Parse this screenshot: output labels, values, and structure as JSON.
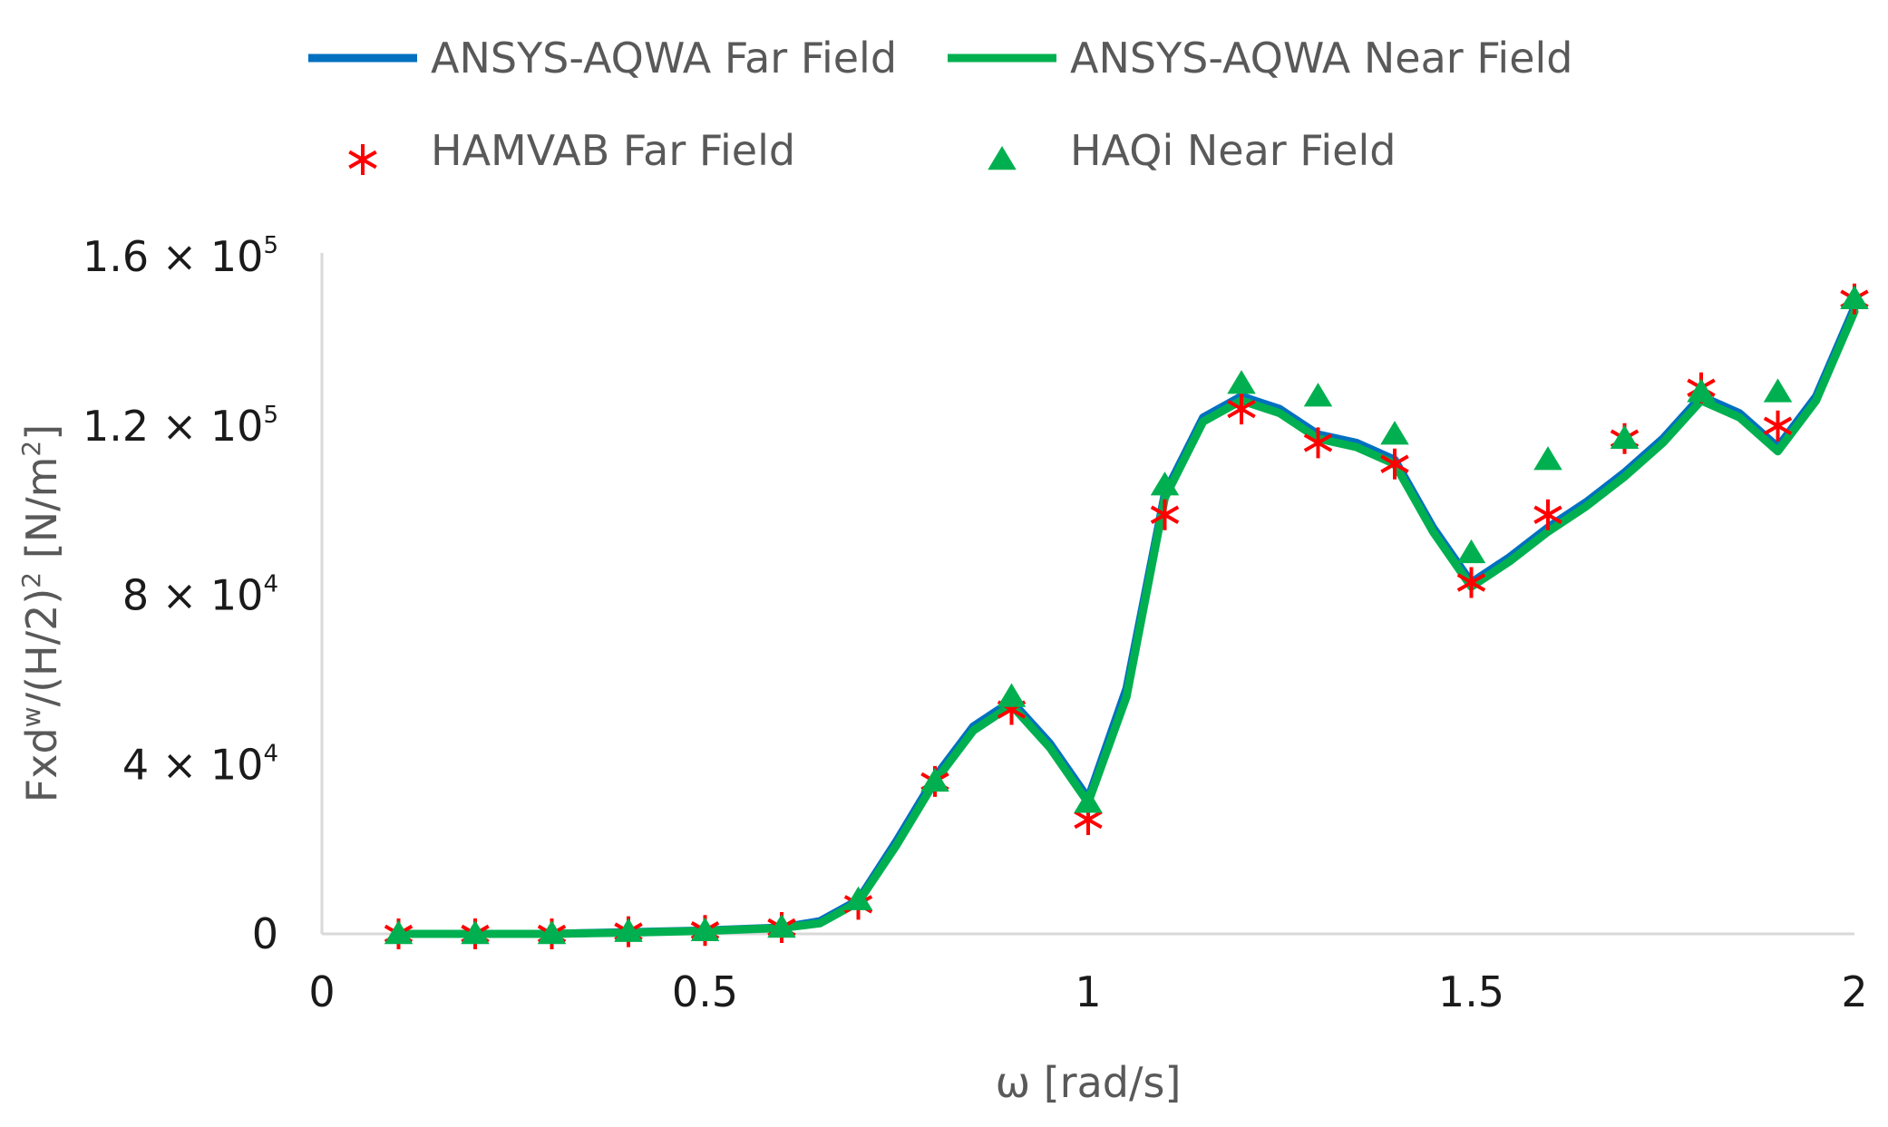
{
  "chart_data": {
    "type": "line",
    "xlabel": "ω [rad/s]",
    "ylabel_parts": [
      "Fxd",
      "w",
      "/(H/2)",
      "2",
      " [N/m",
      "2",
      "]"
    ],
    "xlim": [
      0,
      2
    ],
    "ylim": [
      0,
      160000
    ],
    "x_ticks": [
      0,
      0.5,
      1,
      1.5,
      2
    ],
    "x_tick_labels": [
      "0",
      "0.5",
      "1",
      "1.5",
      "2"
    ],
    "y_ticks": [
      {
        "value": 0,
        "mantissa": "0",
        "exp": ""
      },
      {
        "value": 40000,
        "mantissa": "4 × 10",
        "exp": "4"
      },
      {
        "value": 80000,
        "mantissa": "8 × 10",
        "exp": "4"
      },
      {
        "value": 120000,
        "mantissa": "1.2 × 10",
        "exp": "5"
      },
      {
        "value": 160000,
        "mantissa": "1.6 × 10",
        "exp": "5"
      }
    ],
    "legend_position": "top",
    "series": [
      {
        "name": "ANSYS-AQWA Far Field",
        "style": "line",
        "color": "#0070C0",
        "x": [
          0.1,
          0.2,
          0.3,
          0.4,
          0.5,
          0.6,
          0.65,
          0.7,
          0.75,
          0.8,
          0.85,
          0.9,
          0.95,
          1.0,
          1.05,
          1.1,
          1.15,
          1.2,
          1.25,
          1.3,
          1.35,
          1.4,
          1.45,
          1.5,
          1.55,
          1.6,
          1.65,
          1.7,
          1.75,
          1.8,
          1.85,
          1.9,
          1.95,
          2.0
        ],
        "y": [
          0,
          0,
          0,
          400,
          800,
          1500,
          3000,
          8000,
          22000,
          37000,
          49000,
          55000,
          45000,
          32000,
          58000,
          104000,
          122000,
          127000,
          124000,
          118000,
          116000,
          112000,
          96000,
          83000,
          89000,
          96000,
          102000,
          109000,
          117000,
          127000,
          123000,
          115000,
          127000,
          148000
        ]
      },
      {
        "name": "ANSYS-AQWA Near Field",
        "style": "line",
        "color": "#00B050",
        "x": [
          0.1,
          0.2,
          0.3,
          0.4,
          0.5,
          0.6,
          0.65,
          0.7,
          0.75,
          0.8,
          0.85,
          0.9,
          0.95,
          1.0,
          1.05,
          1.1,
          1.15,
          1.2,
          1.25,
          1.3,
          1.35,
          1.4,
          1.45,
          1.5,
          1.55,
          1.6,
          1.65,
          1.7,
          1.75,
          1.8,
          1.85,
          1.9,
          1.95,
          2.0
        ],
        "y": [
          0,
          0,
          0,
          300,
          700,
          1400,
          2500,
          7500,
          21000,
          36000,
          48000,
          54000,
          44000,
          31000,
          56000,
          103000,
          121000,
          126000,
          123000,
          117000,
          115000,
          111000,
          95000,
          82000,
          88000,
          95000,
          101000,
          108000,
          116000,
          126000,
          122000,
          114000,
          126000,
          147000
        ]
      },
      {
        "name": "HAMVAB Far Field",
        "style": "marker-asterisk",
        "color": "#FF0000",
        "x": [
          0.1,
          0.2,
          0.3,
          0.4,
          0.5,
          0.6,
          0.7,
          0.8,
          0.9,
          1.0,
          1.1,
          1.2,
          1.3,
          1.4,
          1.5,
          1.6,
          1.7,
          1.8,
          1.9,
          2.0
        ],
        "y": [
          0,
          0,
          0,
          500,
          800,
          1500,
          7000,
          36000,
          53000,
          27000,
          99000,
          124000,
          116000,
          111000,
          83000,
          99000,
          117000,
          129000,
          120000,
          150000
        ]
      },
      {
        "name": "HAQi Near Field",
        "style": "marker-triangle",
        "color": "#00B050",
        "x": [
          0.1,
          0.2,
          0.3,
          0.4,
          0.5,
          0.6,
          0.7,
          0.8,
          0.9,
          1.0,
          1.1,
          1.2,
          1.3,
          1.4,
          1.5,
          1.6,
          1.7,
          1.8,
          1.9,
          2.0
        ],
        "y": [
          0,
          0,
          0,
          500,
          700,
          1500,
          8000,
          36000,
          56000,
          31000,
          106000,
          130000,
          127000,
          118000,
          90000,
          112000,
          117000,
          128000,
          128000,
          150000
        ]
      }
    ]
  }
}
